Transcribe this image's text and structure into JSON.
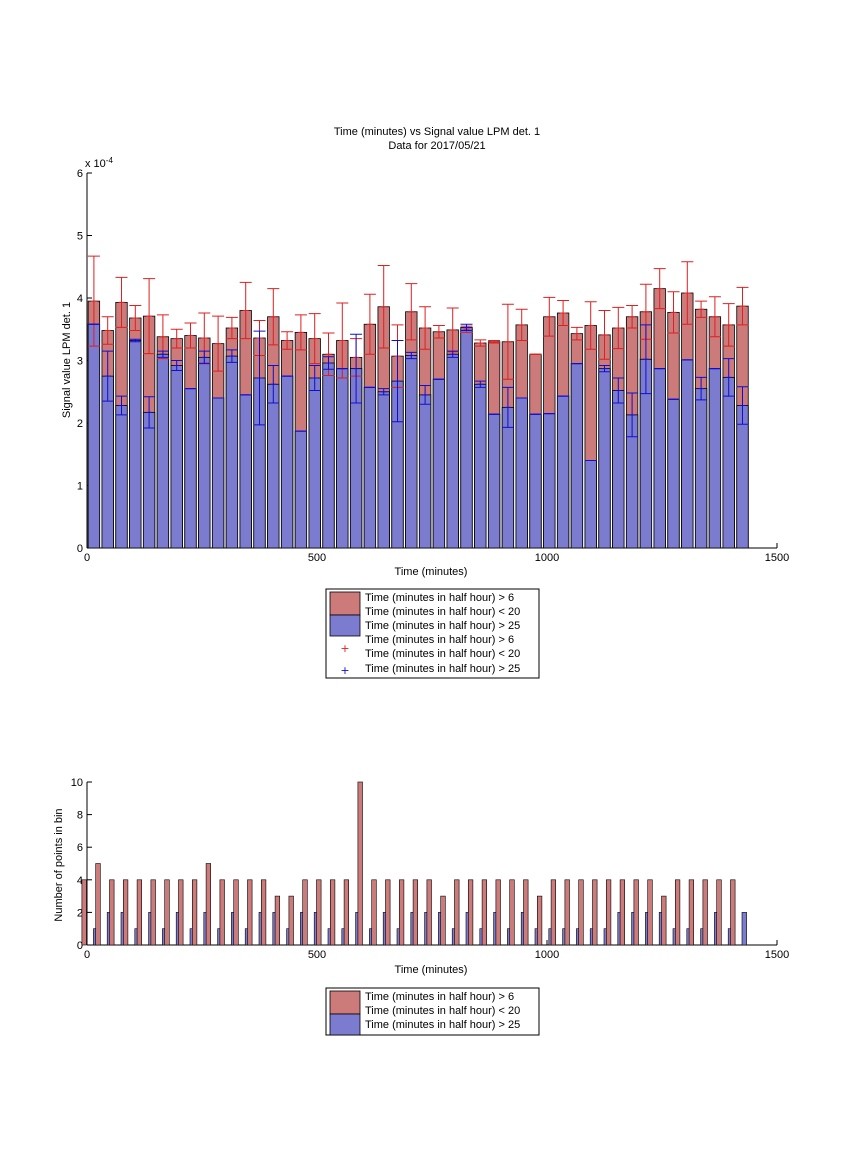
{
  "colors": {
    "red_fill": "#cc7a7a",
    "blue_fill": "#7b7bd0",
    "red_err": "#dd2020",
    "blue_err": "#1010cc",
    "axis": "#000000"
  },
  "chart_data": [
    {
      "type": "bar",
      "title": "Time (minutes) vs Signal value LPM det. 1",
      "subtitle": "Data for 2017/05/21",
      "xlabel": "Time (minutes)",
      "ylabel": "Signal value LPM det. 1",
      "exponent_label": "x 10",
      "exponent_power": "-4",
      "xlim": [
        0,
        1500
      ],
      "ylim": [
        0,
        6
      ],
      "xticks": [
        "0",
        "500",
        "1000",
        "1500"
      ],
      "yticks": [
        "0",
        "1",
        "2",
        "3",
        "4",
        "5",
        "6"
      ],
      "x": [
        15,
        45,
        75,
        105,
        135,
        165,
        195,
        225,
        255,
        285,
        315,
        345,
        375,
        405,
        435,
        465,
        495,
        525,
        555,
        585,
        615,
        645,
        675,
        705,
        735,
        765,
        795,
        825,
        855,
        885,
        915,
        945,
        975,
        1005,
        1035,
        1065,
        1095,
        1125,
        1155,
        1185,
        1215,
        1245,
        1275,
        1305,
        1335,
        1365,
        1395,
        1425
      ],
      "series": [
        {
          "name": "Time (minutes in half hour) > 6\nTime (minutes in half hour) < 20",
          "values": [
            3.95,
            3.48,
            3.93,
            3.68,
            3.71,
            3.38,
            3.35,
            3.4,
            3.36,
            3.27,
            3.52,
            3.8,
            3.36,
            3.7,
            3.32,
            3.45,
            3.35,
            3.1,
            3.32,
            3.05,
            3.58,
            3.86,
            3.07,
            3.78,
            3.52,
            3.46,
            3.49,
            3.5,
            3.28,
            3.3,
            3.3,
            3.57,
            3.1,
            3.7,
            3.76,
            3.43,
            3.56,
            3.41,
            3.52,
            3.7,
            3.78,
            4.15,
            3.77,
            4.08,
            3.82,
            3.7,
            3.57,
            3.87
          ],
          "err": [
            0.72,
            0.22,
            0.4,
            0.2,
            0.6,
            0.35,
            0.15,
            0.2,
            0.4,
            0.44,
            0.17,
            0.45,
            0.28,
            0.45,
            0.14,
            0.28,
            0.4,
            0.34,
            0.6,
            0.3,
            0.48,
            0.66,
            0.5,
            0.45,
            0.34,
            0.1,
            0.35,
            0.05,
            0.05,
            0.02,
            0.6,
            0.25,
            0.0,
            0.31,
            0.2,
            0.1,
            0.38,
            0.39,
            0.33,
            0.18,
            0.44,
            0.32,
            0.33,
            0.5,
            0.13,
            0.32,
            0.34,
            0.3
          ]
        },
        {
          "name": "Time (minutes in half hour) > 25",
          "values": [
            3.58,
            2.75,
            2.28,
            3.32,
            2.17,
            3.1,
            2.92,
            2.55,
            3.05,
            2.4,
            3.07,
            2.45,
            2.72,
            2.62,
            2.75,
            1.87,
            2.72,
            2.96,
            2.87,
            2.87,
            2.57,
            2.5,
            2.67,
            3.08,
            2.45,
            2.7,
            3.1,
            3.53,
            2.62,
            2.14,
            2.25,
            2.4,
            2.14,
            2.15,
            2.43,
            2.95,
            1.4,
            2.87,
            2.52,
            2.13,
            3.02,
            2.87,
            2.38,
            3.01,
            2.55,
            2.87,
            2.73,
            2.28
          ],
          "err": [
            0.0,
            0.4,
            0.15,
            0.02,
            0.25,
            0.05,
            0.08,
            0.0,
            0.1,
            0.0,
            0.1,
            0.0,
            0.75,
            0.3,
            0.0,
            0.0,
            0.2,
            0.1,
            0.0,
            0.55,
            0.0,
            0.05,
            0.65,
            0.05,
            0.15,
            0.0,
            0.05,
            0.05,
            0.05,
            0.0,
            0.32,
            0.0,
            0.0,
            0.0,
            0.0,
            0.0,
            0.0,
            0.05,
            0.2,
            0.35,
            0.55,
            0.0,
            0.0,
            0.0,
            0.18,
            0.0,
            0.3,
            0.3
          ]
        }
      ],
      "legend": {
        "placement": "below",
        "entries": [
          [
            "Time (minutes in half hour) > 6",
            "Time (minutes in half hour) < 20"
          ],
          [
            "Time (minutes in half hour) > 25"
          ],
          [
            "Time (minutes in half hour) > 6",
            "Time (minutes in half hour) < 20"
          ],
          [
            "Time (minutes in half hour) > 25"
          ]
        ]
      }
    },
    {
      "type": "bar",
      "title": "",
      "xlabel": "Time (minutes)",
      "ylabel": "Number of points in bin",
      "xlim": [
        0,
        1500
      ],
      "ylim": [
        0,
        10
      ],
      "xticks": [
        "0",
        "500",
        "1000",
        "1500"
      ],
      "yticks": [
        "0",
        "2",
        "4",
        "6",
        "8",
        "10"
      ],
      "x": [
        15,
        45,
        75,
        105,
        135,
        165,
        195,
        225,
        255,
        285,
        315,
        345,
        375,
        405,
        435,
        465,
        495,
        525,
        555,
        585,
        615,
        645,
        675,
        705,
        735,
        765,
        795,
        825,
        855,
        885,
        915,
        945,
        975,
        1005,
        1035,
        1065,
        1095,
        1125,
        1155,
        1185,
        1215,
        1245,
        1275,
        1305,
        1335,
        1365,
        1395,
        1425
      ],
      "series": [
        {
          "name": "Time (minutes in half hour) > 6\nTime (minutes in half hour) < 20",
          "values": [
            4,
            5,
            4,
            4,
            4,
            4,
            4,
            4,
            4,
            5,
            4,
            4,
            4,
            4,
            3,
            3,
            4,
            4,
            4,
            4,
            10,
            4,
            4,
            4,
            4,
            4,
            3,
            4,
            4,
            4,
            4,
            4,
            4,
            3,
            4,
            4,
            4,
            4,
            4,
            4,
            4,
            4,
            3,
            4,
            4,
            4,
            4,
            4
          ]
        },
        {
          "name": "Time (minutes in half hour) > 25",
          "values": [
            1,
            2,
            2,
            1,
            2,
            1,
            2,
            1,
            2,
            1,
            2,
            1,
            2,
            2,
            1,
            2,
            2,
            1,
            1,
            2,
            1,
            2,
            1,
            2,
            2,
            2,
            1,
            2,
            1,
            2,
            1,
            2,
            1,
            1,
            1,
            1,
            1,
            1,
            2,
            2,
            2,
            2,
            1,
            1,
            1,
            2,
            1,
            2
          ]
        }
      ],
      "legend": {
        "placement": "below",
        "entries": [
          [
            "Time (minutes in half hour) > 6",
            "Time (minutes in half hour) < 20"
          ],
          [
            "Time (minutes in half hour) > 25"
          ]
        ]
      }
    }
  ]
}
